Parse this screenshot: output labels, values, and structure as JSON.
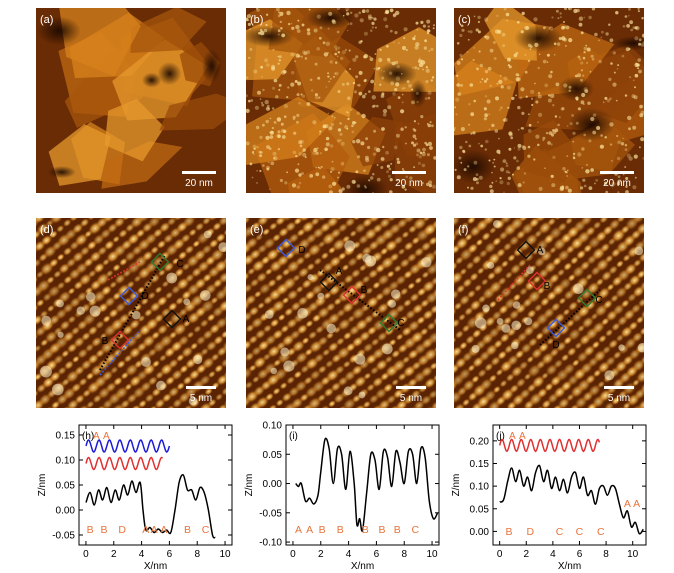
{
  "panels": [
    {
      "id": "a",
      "label": "(a)",
      "scale": "20 nm"
    },
    {
      "id": "b",
      "label": "(b)",
      "scale": "20 nm"
    },
    {
      "id": "c",
      "label": "(c)",
      "scale": "20 nm"
    },
    {
      "id": "d",
      "label": "(d)",
      "scale": "5 nm",
      "markers": [
        {
          "label": "C",
          "color": "#2e7d32"
        },
        {
          "label": "D",
          "color": "#3b5bdb"
        },
        {
          "label": "A",
          "color": "#111111"
        },
        {
          "label": "B",
          "color": "#e03131"
        }
      ]
    },
    {
      "id": "e",
      "label": "(e)",
      "scale": "5 nm",
      "markers": [
        {
          "label": "D",
          "color": "#3b5bdb"
        },
        {
          "label": "A",
          "color": "#111111"
        },
        {
          "label": "B",
          "color": "#e03131"
        },
        {
          "label": "C",
          "color": "#2e7d32"
        }
      ]
    },
    {
      "id": "f",
      "label": "(f)",
      "scale": "5 nm",
      "markers": [
        {
          "label": "A",
          "color": "#111111"
        },
        {
          "label": "B",
          "color": "#e03131"
        },
        {
          "label": "C",
          "color": "#2e7d32"
        },
        {
          "label": "D",
          "color": "#3b5bdb"
        }
      ]
    }
  ],
  "colors": {
    "afm_dark": "#3a1400",
    "afm_mid": "#b8620f",
    "afm_light": "#ffe8a0",
    "profile_black": "#000000",
    "profile_red": "#e03131",
    "profile_blue": "#1c1cd6",
    "annotation": "#e8743b"
  },
  "chart_data": [
    {
      "type": "line",
      "panel": "(h)",
      "xlabel": "X/nm",
      "ylabel": "Z/nm",
      "xlim": [
        -0.5,
        10.5
      ],
      "ylim": [
        -0.07,
        0.17
      ],
      "xticks": [
        "0",
        "2",
        "4",
        "6",
        "8",
        "10"
      ],
      "yticks": [
        "-0.05",
        "0.00",
        "0.05",
        "0.10",
        "0.15"
      ],
      "top_labels": [
        "A",
        "A"
      ],
      "bottom_labels": [
        "B",
        "B",
        "D",
        "A",
        "A",
        "A",
        "B",
        "C"
      ],
      "series": [
        {
          "color": "#1c1cd6",
          "x": [
            0,
            6
          ],
          "baseline": 0.128,
          "amplitude": 0.012,
          "period": 0.75
        },
        {
          "color": "#e03131",
          "x": [
            0,
            5.5
          ],
          "baseline": 0.093,
          "amplitude": 0.012,
          "period": 0.75
        },
        {
          "color": "#000000",
          "points": [
            [
              0,
              0.015
            ],
            [
              0.3,
              0.035
            ],
            [
              0.6,
              0.01
            ],
            [
              0.9,
              0.04
            ],
            [
              1.2,
              0.02
            ],
            [
              1.5,
              0.045
            ],
            [
              1.8,
              0.015
            ],
            [
              2.1,
              0.04
            ],
            [
              2.4,
              0.02
            ],
            [
              2.7,
              0.05
            ],
            [
              3.0,
              0.03
            ],
            [
              3.3,
              0.058
            ],
            [
              3.6,
              0.035
            ],
            [
              3.9,
              0.055
            ],
            [
              4.1,
              0.0
            ],
            [
              4.3,
              -0.04
            ],
            [
              4.6,
              -0.035
            ],
            [
              4.9,
              -0.045
            ],
            [
              5.2,
              -0.038
            ],
            [
              5.5,
              -0.045
            ],
            [
              5.8,
              -0.04
            ],
            [
              6.1,
              -0.045
            ],
            [
              6.4,
              0.0
            ],
            [
              6.7,
              0.055
            ],
            [
              7.0,
              0.07
            ],
            [
              7.3,
              0.04
            ],
            [
              7.6,
              0.04
            ],
            [
              7.9,
              0.02
            ],
            [
              8.2,
              0.045
            ],
            [
              8.5,
              0.035
            ],
            [
              8.8,
              0.0
            ],
            [
              9.1,
              -0.05
            ],
            [
              9.3,
              -0.055
            ]
          ]
        }
      ]
    },
    {
      "type": "line",
      "panel": "(i)",
      "xlabel": "X/nm",
      "ylabel": "Z/nm",
      "xlim": [
        -0.5,
        10.5
      ],
      "ylim": [
        -0.105,
        0.1
      ],
      "xticks": [
        "0",
        "2",
        "4",
        "6",
        "8",
        "10"
      ],
      "yticks": [
        "-0.10",
        "-0.05",
        "0.00",
        "0.05",
        "0.10"
      ],
      "bottom_labels": [
        "A",
        "A",
        "B",
        "B",
        "B",
        "B",
        "B",
        "C"
      ],
      "series": [
        {
          "color": "#000000",
          "points": [
            [
              0.2,
              0.0
            ],
            [
              0.4,
              -0.005
            ],
            [
              0.6,
              0.0
            ],
            [
              0.9,
              -0.03
            ],
            [
              1.2,
              -0.025
            ],
            [
              1.5,
              -0.035
            ],
            [
              1.8,
              -0.02
            ],
            [
              2.0,
              0.02
            ],
            [
              2.3,
              0.075
            ],
            [
              2.6,
              0.06
            ],
            [
              2.9,
              0.0
            ],
            [
              3.2,
              0.06
            ],
            [
              3.5,
              0.05
            ],
            [
              3.8,
              -0.01
            ],
            [
              4.1,
              0.055
            ],
            [
              4.4,
              0.0
            ],
            [
              4.6,
              -0.07
            ],
            [
              4.8,
              -0.06
            ],
            [
              5.0,
              -0.08
            ],
            [
              5.3,
              -0.015
            ],
            [
              5.6,
              0.05
            ],
            [
              5.9,
              0.04
            ],
            [
              6.2,
              -0.01
            ],
            [
              6.5,
              0.055
            ],
            [
              6.8,
              0.045
            ],
            [
              7.1,
              -0.005
            ],
            [
              7.4,
              0.055
            ],
            [
              7.7,
              0.035
            ],
            [
              8.0,
              0.0
            ],
            [
              8.3,
              0.055
            ],
            [
              8.6,
              0.05
            ],
            [
              8.9,
              0.0
            ],
            [
              9.2,
              0.06
            ],
            [
              9.5,
              0.045
            ],
            [
              9.8,
              -0.03
            ],
            [
              10.1,
              -0.06
            ],
            [
              10.4,
              -0.05
            ]
          ]
        }
      ]
    },
    {
      "type": "line",
      "panel": "(j)",
      "xlabel": "X/nm",
      "ylabel": "Z/nm",
      "xlim": [
        -0.5,
        11
      ],
      "ylim": [
        -0.03,
        0.235
      ],
      "xticks": [
        "0",
        "2",
        "4",
        "6",
        "8",
        "10"
      ],
      "yticks": [
        "0.00",
        "0.05",
        "0.10",
        "0.15",
        "0.20"
      ],
      "top_labels": [
        "A",
        "A"
      ],
      "bottom_labels": [
        "B",
        "D",
        "C",
        "C",
        "C",
        "A",
        "A"
      ],
      "series": [
        {
          "color": "#e03131",
          "x": [
            0,
            7.5
          ],
          "baseline": 0.19,
          "amplitude": 0.013,
          "period": 0.72
        },
        {
          "color": "#000000",
          "points": [
            [
              0,
              0.065
            ],
            [
              0.3,
              0.07
            ],
            [
              0.6,
              0.11
            ],
            [
              0.9,
              0.14
            ],
            [
              1.2,
              0.11
            ],
            [
              1.5,
              0.135
            ],
            [
              1.8,
              0.1
            ],
            [
              2.1,
              0.12
            ],
            [
              2.4,
              0.09
            ],
            [
              2.7,
              0.13
            ],
            [
              3.0,
              0.145
            ],
            [
              3.3,
              0.11
            ],
            [
              3.6,
              0.135
            ],
            [
              3.9,
              0.095
            ],
            [
              4.2,
              0.12
            ],
            [
              4.5,
              0.09
            ],
            [
              4.8,
              0.115
            ],
            [
              5.1,
              0.085
            ],
            [
              5.4,
              0.12
            ],
            [
              5.7,
              0.13
            ],
            [
              6.0,
              0.095
            ],
            [
              6.3,
              0.12
            ],
            [
              6.6,
              0.08
            ],
            [
              6.9,
              0.09
            ],
            [
              7.2,
              0.06
            ],
            [
              7.5,
              0.095
            ],
            [
              7.8,
              0.1
            ],
            [
              8.1,
              0.08
            ],
            [
              8.4,
              0.1
            ],
            [
              8.7,
              0.095
            ],
            [
              9.0,
              0.06
            ],
            [
              9.3,
              0.03
            ],
            [
              9.6,
              0.045
            ],
            [
              9.9,
              0.01
            ],
            [
              10.2,
              0.02
            ],
            [
              10.5,
              -0.005
            ],
            [
              10.8,
              0.005
            ]
          ]
        }
      ]
    }
  ]
}
